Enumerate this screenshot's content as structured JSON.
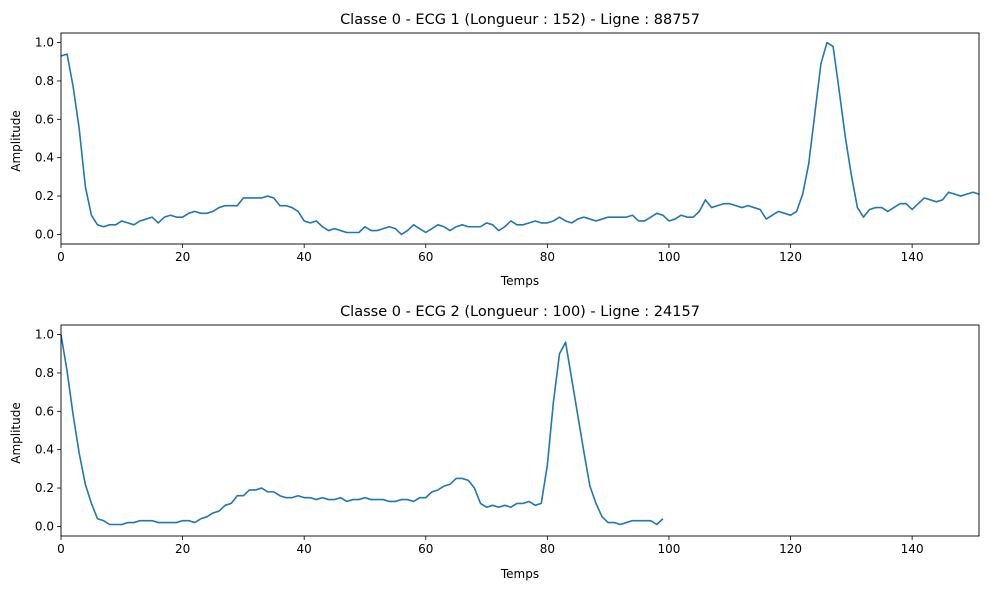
{
  "chart_data": [
    {
      "type": "line",
      "title": "Classe 0 - ECG 1 (Longueur : 152) - Ligne : 88757",
      "xlabel": "Temps",
      "ylabel": "Amplitude",
      "xlim": [
        0,
        151
      ],
      "ylim": [
        -0.05,
        1.05
      ],
      "xticks": [
        0,
        20,
        40,
        60,
        80,
        100,
        120,
        140
      ],
      "yticks": [
        0.0,
        0.2,
        0.4,
        0.6,
        0.8,
        1.0
      ],
      "grid": false,
      "series": [
        {
          "color": "#1f77b4",
          "x_start": 0,
          "values": [
            0.93,
            0.94,
            0.77,
            0.55,
            0.25,
            0.1,
            0.05,
            0.04,
            0.05,
            0.05,
            0.07,
            0.06,
            0.05,
            0.07,
            0.08,
            0.09,
            0.06,
            0.09,
            0.1,
            0.09,
            0.09,
            0.11,
            0.12,
            0.11,
            0.11,
            0.12,
            0.14,
            0.15,
            0.15,
            0.15,
            0.19,
            0.19,
            0.19,
            0.19,
            0.2,
            0.19,
            0.15,
            0.15,
            0.14,
            0.12,
            0.07,
            0.06,
            0.07,
            0.04,
            0.02,
            0.03,
            0.02,
            0.01,
            0.01,
            0.01,
            0.04,
            0.02,
            0.02,
            0.03,
            0.04,
            0.03,
            0.0,
            0.02,
            0.05,
            0.03,
            0.01,
            0.03,
            0.05,
            0.04,
            0.02,
            0.04,
            0.05,
            0.04,
            0.04,
            0.04,
            0.06,
            0.05,
            0.02,
            0.04,
            0.07,
            0.05,
            0.05,
            0.06,
            0.07,
            0.06,
            0.06,
            0.07,
            0.09,
            0.07,
            0.06,
            0.08,
            0.09,
            0.08,
            0.07,
            0.08,
            0.09,
            0.09,
            0.09,
            0.09,
            0.1,
            0.07,
            0.07,
            0.09,
            0.11,
            0.1,
            0.07,
            0.08,
            0.1,
            0.09,
            0.09,
            0.12,
            0.18,
            0.14,
            0.15,
            0.16,
            0.16,
            0.15,
            0.14,
            0.15,
            0.14,
            0.13,
            0.08,
            0.1,
            0.12,
            0.11,
            0.1,
            0.12,
            0.21,
            0.37,
            0.63,
            0.89,
            1.0,
            0.98,
            0.75,
            0.51,
            0.31,
            0.14,
            0.09,
            0.13,
            0.14,
            0.14,
            0.12,
            0.14,
            0.16,
            0.16,
            0.13,
            0.16,
            0.19,
            0.18,
            0.17,
            0.18,
            0.22,
            0.21,
            0.2,
            0.21,
            0.22,
            0.21
          ]
        }
      ]
    },
    {
      "type": "line",
      "title": "Classe 0 - ECG 2 (Longueur : 100) - Ligne : 24157",
      "xlabel": "Temps",
      "ylabel": "Amplitude",
      "xlim": [
        0,
        151
      ],
      "ylim": [
        -0.05,
        1.05
      ],
      "xticks": [
        0,
        20,
        40,
        60,
        80,
        100,
        120,
        140
      ],
      "yticks": [
        0.0,
        0.2,
        0.4,
        0.6,
        0.8,
        1.0
      ],
      "grid": false,
      "series": [
        {
          "color": "#1f77b4",
          "x_start": 0,
          "values": [
            1.0,
            0.81,
            0.58,
            0.38,
            0.22,
            0.12,
            0.04,
            0.03,
            0.01,
            0.01,
            0.01,
            0.02,
            0.02,
            0.03,
            0.03,
            0.03,
            0.02,
            0.02,
            0.02,
            0.02,
            0.03,
            0.03,
            0.02,
            0.04,
            0.05,
            0.07,
            0.08,
            0.11,
            0.12,
            0.16,
            0.16,
            0.19,
            0.19,
            0.2,
            0.18,
            0.18,
            0.16,
            0.15,
            0.15,
            0.16,
            0.15,
            0.15,
            0.14,
            0.15,
            0.14,
            0.14,
            0.15,
            0.13,
            0.14,
            0.14,
            0.15,
            0.14,
            0.14,
            0.14,
            0.13,
            0.13,
            0.14,
            0.14,
            0.13,
            0.15,
            0.15,
            0.18,
            0.19,
            0.21,
            0.22,
            0.25,
            0.25,
            0.24,
            0.2,
            0.12,
            0.1,
            0.11,
            0.1,
            0.11,
            0.1,
            0.12,
            0.12,
            0.13,
            0.11,
            0.12,
            0.32,
            0.65,
            0.9,
            0.96,
            0.77,
            0.58,
            0.39,
            0.21,
            0.12,
            0.05,
            0.02,
            0.02,
            0.01,
            0.02,
            0.03,
            0.03,
            0.03,
            0.03,
            0.01,
            0.04
          ]
        }
      ]
    }
  ]
}
